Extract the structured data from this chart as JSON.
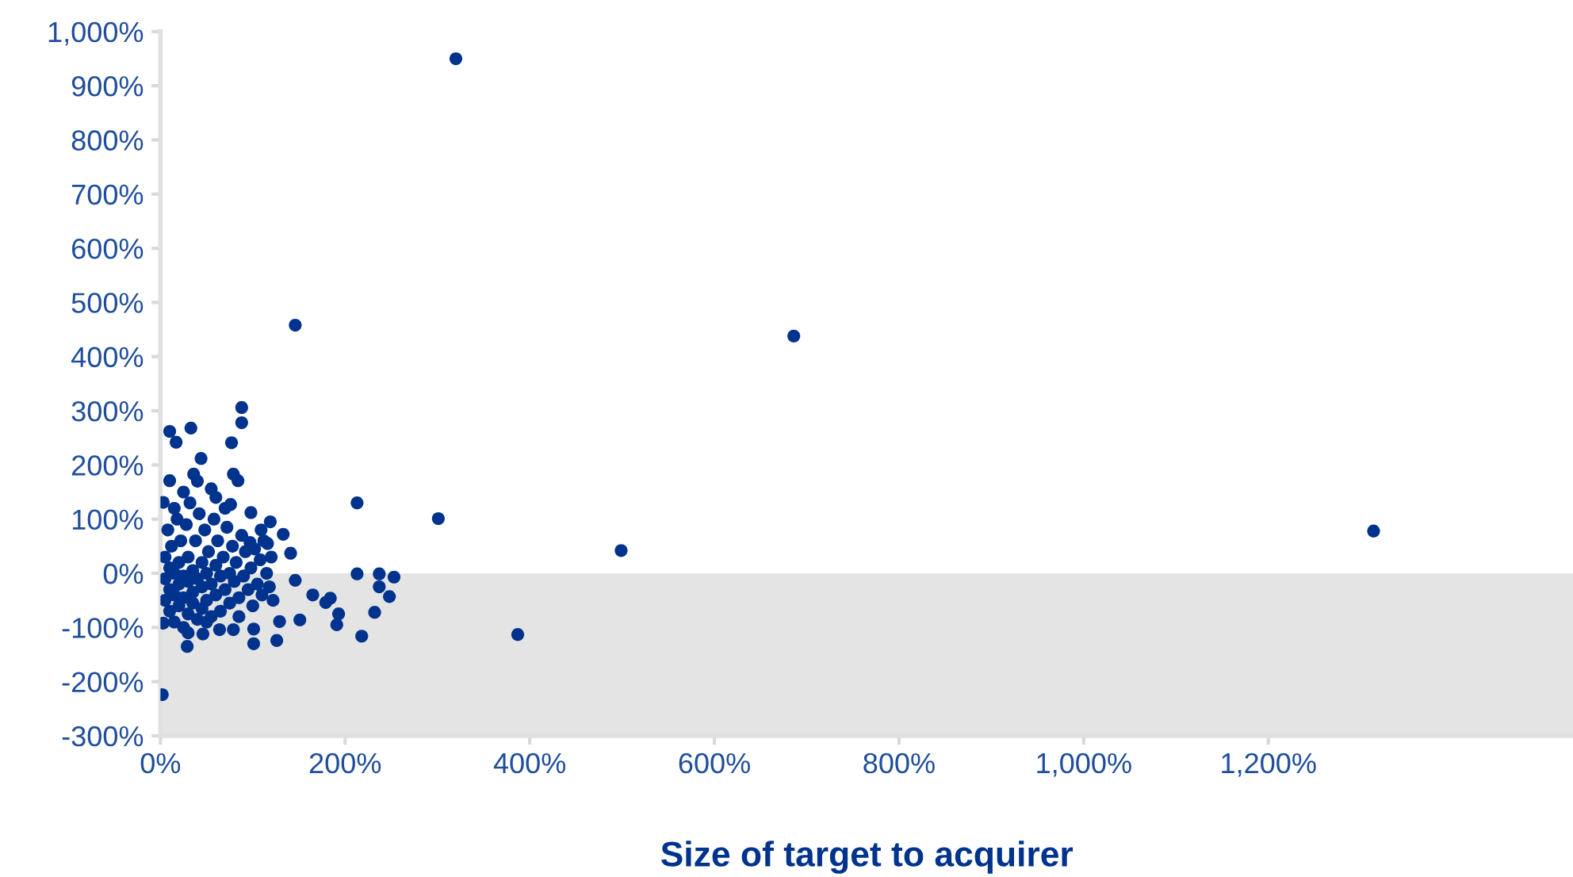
{
  "chart_data": {
    "type": "scatter",
    "xlabel": "Size of target to acquirer",
    "marker": "circle",
    "grid": false,
    "xlim": [
      0,
      1530
    ],
    "ylim": [
      -300,
      1000
    ],
    "xticks": [
      {
        "value": 0,
        "label": "0%"
      },
      {
        "value": 200,
        "label": "200%"
      },
      {
        "value": 400,
        "label": "400%"
      },
      {
        "value": 600,
        "label": "600%"
      },
      {
        "value": 800,
        "label": "800%"
      },
      {
        "value": 1000,
        "label": "1,000%"
      },
      {
        "value": 1200,
        "label": "1,200%"
      }
    ],
    "yticks": [
      {
        "value": -300,
        "label": "-300%"
      },
      {
        "value": -200,
        "label": "-200%"
      },
      {
        "value": -100,
        "label": "-100%"
      },
      {
        "value": 0,
        "label": "0%"
      },
      {
        "value": 100,
        "label": "100%"
      },
      {
        "value": 200,
        "label": "200%"
      },
      {
        "value": 300,
        "label": "300%"
      },
      {
        "value": 400,
        "label": "400%"
      },
      {
        "value": 500,
        "label": "500%"
      },
      {
        "value": 600,
        "label": "600%"
      },
      {
        "value": 700,
        "label": "700%"
      },
      {
        "value": 800,
        "label": "800%"
      },
      {
        "value": 900,
        "label": "900%"
      },
      {
        "value": 1000,
        "label": "1,000%"
      }
    ],
    "bands": [
      {
        "axis": "y",
        "from": -300,
        "to": 0,
        "color": "#e4e4e4"
      }
    ],
    "series": [
      {
        "color": "#00338d",
        "x": [
          320,
          146,
          686,
          1314,
          301,
          499,
          387,
          2,
          213,
          213,
          237,
          253,
          237,
          248,
          232,
          218,
          193,
          191,
          179,
          184,
          165,
          151,
          146,
          129,
          126,
          101,
          29,
          141,
          133,
          88,
          88,
          77,
          10,
          33,
          17,
          44,
          79,
          84,
          36,
          10,
          55,
          3,
          76,
          98,
          119,
          109,
          116,
          97,
          3,
          101,
          46,
          64,
          79,
          5,
          5,
          5,
          8,
          10,
          10,
          10,
          12,
          15,
          15,
          15,
          18,
          20,
          20,
          20,
          22,
          25,
          25,
          25,
          28,
          30,
          30,
          30,
          32,
          35,
          35,
          35,
          38,
          40,
          40,
          42,
          45,
          45,
          45,
          48,
          50,
          50,
          52,
          55,
          55,
          58,
          60,
          60,
          62,
          65,
          65,
          68,
          70,
          72,
          75,
          75,
          78,
          80,
          82,
          85,
          88,
          90,
          92,
          95,
          98,
          100,
          102,
          105,
          108,
          110,
          112,
          115,
          118,
          120,
          122,
          25,
          40,
          60,
          15,
          70,
          50,
          30,
          85
        ],
        "values": [
          950,
          458,
          438,
          78,
          101,
          42,
          -113,
          -224,
          130,
          -1,
          -1,
          -7,
          -25,
          -43,
          -72,
          -116,
          -75,
          -95,
          -54,
          -46,
          -40,
          -86,
          -13,
          -89,
          -124,
          -130,
          -135,
          37,
          72,
          306,
          278,
          241,
          262,
          268,
          242,
          212,
          183,
          171,
          183,
          171,
          156,
          131,
          127,
          112,
          95,
          80,
          55,
          57,
          -92,
          -103,
          -112,
          -104,
          -104,
          30,
          -10,
          -50,
          80,
          10,
          -30,
          -70,
          50,
          0,
          -40,
          -90,
          100,
          20,
          -20,
          -60,
          60,
          -5,
          -45,
          -100,
          90,
          30,
          -15,
          -75,
          130,
          5,
          -35,
          -55,
          60,
          -10,
          -85,
          110,
          20,
          -25,
          -65,
          80,
          0,
          -50,
          40,
          -20,
          -80,
          100,
          15,
          -40,
          60,
          -5,
          -70,
          30,
          -30,
          85,
          0,
          -55,
          50,
          -15,
          20,
          -45,
          70,
          -5,
          40,
          -30,
          10,
          -60,
          45,
          -20,
          25,
          -40,
          60,
          0,
          -25,
          30,
          -50,
          150,
          170,
          140,
          120,
          120,
          -90,
          -110,
          -80
        ]
      }
    ]
  }
}
